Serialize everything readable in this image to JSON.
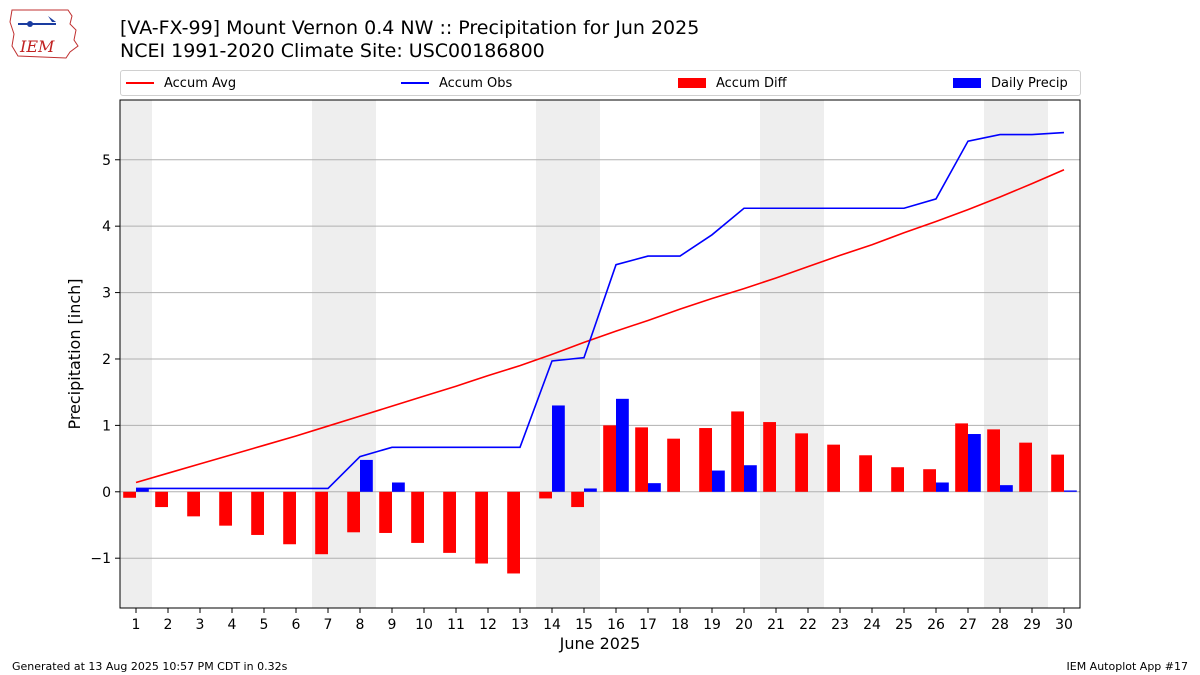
{
  "header": {
    "title_line1": "[VA-FX-99] Mount Vernon 0.4 NW :: Precipitation for Jun 2025",
    "title_line2": "NCEI 1991-2020 Climate Site: USC00186800",
    "logo_text": "IEM"
  },
  "legend": {
    "accum_avg": "Accum Avg",
    "accum_obs": "Accum Obs",
    "accum_diff": "Accum Diff",
    "daily_precip": "Daily Precip"
  },
  "colors": {
    "accum_avg": "#ff0000",
    "accum_obs": "#0000ff",
    "accum_diff": "#ff0000",
    "daily_precip": "#0000ff",
    "weekend_shade": "#eeeeee",
    "grid": "#b0b0b0"
  },
  "chart_data": {
    "type": "bar",
    "xlabel": "June 2025",
    "ylabel": "Precipitation [inch]",
    "x": [
      1,
      2,
      3,
      4,
      5,
      6,
      7,
      8,
      9,
      10,
      11,
      12,
      13,
      14,
      15,
      16,
      17,
      18,
      19,
      20,
      21,
      22,
      23,
      24,
      25,
      26,
      27,
      28,
      29,
      30
    ],
    "xlim": [
      0.5,
      30.5
    ],
    "ylim": [
      -1.75,
      5.9
    ],
    "yticks": [
      -1,
      0,
      1,
      2,
      3,
      4,
      5
    ],
    "grid": "horizontal",
    "legend_position": "top",
    "shaded_days": [
      [
        1,
        1
      ],
      [
        7,
        8
      ],
      [
        14,
        15
      ],
      [
        21,
        22
      ],
      [
        28,
        29
      ]
    ],
    "series": [
      {
        "name": "Accum Avg",
        "type": "line",
        "values": [
          0.14,
          0.28,
          0.42,
          0.56,
          0.7,
          0.84,
          0.99,
          1.14,
          1.29,
          1.44,
          1.59,
          1.75,
          1.9,
          2.07,
          2.25,
          2.42,
          2.58,
          2.75,
          2.91,
          3.06,
          3.22,
          3.39,
          3.56,
          3.72,
          3.9,
          4.07,
          4.25,
          4.44,
          4.64,
          4.85
        ]
      },
      {
        "name": "Accum Obs",
        "type": "line",
        "values": [
          0.05,
          0.05,
          0.05,
          0.05,
          0.05,
          0.05,
          0.05,
          0.53,
          0.67,
          0.67,
          0.67,
          0.67,
          0.67,
          1.97,
          2.02,
          3.42,
          3.55,
          3.55,
          3.87,
          4.27,
          4.27,
          4.27,
          4.27,
          4.27,
          4.27,
          4.41,
          5.28,
          5.38,
          5.38,
          5.41
        ]
      },
      {
        "name": "Accum Diff",
        "type": "bar",
        "values": [
          -0.09,
          -0.23,
          -0.37,
          -0.51,
          -0.65,
          -0.79,
          -0.94,
          -0.61,
          -0.62,
          -0.77,
          -0.92,
          -1.08,
          -1.23,
          -0.1,
          -0.23,
          1.0,
          0.97,
          0.8,
          0.96,
          1.21,
          1.05,
          0.88,
          0.71,
          0.55,
          0.37,
          0.34,
          1.03,
          0.94,
          0.74,
          0.56
        ]
      },
      {
        "name": "Daily Precip",
        "type": "bar",
        "values": [
          0.05,
          0,
          0,
          0,
          0,
          0,
          0,
          0.48,
          0.14,
          0,
          0,
          0,
          0,
          1.3,
          0.05,
          1.4,
          0.13,
          0,
          0.32,
          0.4,
          0,
          0,
          0,
          0,
          0,
          0.14,
          0.87,
          0.1,
          0,
          0.02
        ]
      }
    ]
  },
  "footer": {
    "generated": "Generated at 13 Aug 2025 10:57 PM CDT in 0.32s",
    "app": "IEM Autoplot App #17"
  }
}
